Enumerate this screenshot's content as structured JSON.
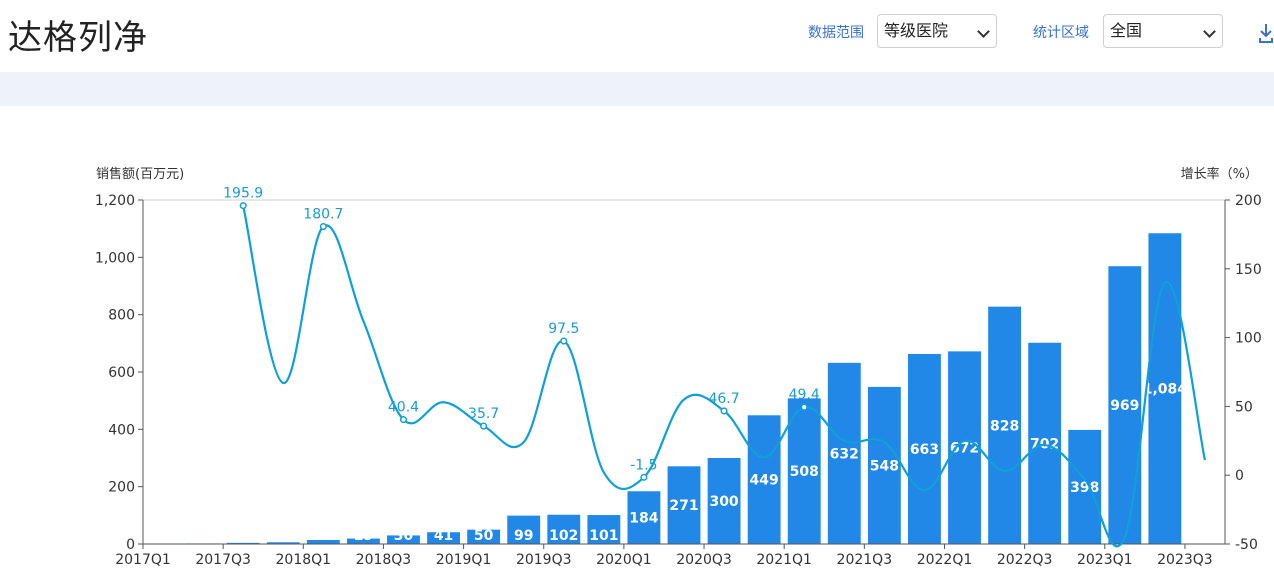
{
  "page": {
    "title": "达格列净",
    "filters": [
      {
        "label": "数据范围",
        "value": "等级医院"
      },
      {
        "label": "统计区域",
        "value": "全国"
      }
    ],
    "download_icon": "download-icon"
  },
  "colors": {
    "bar": "#2288e8",
    "line": "#0ea0d6",
    "label_line": "#1c9bd0",
    "accent": "#3a72c9"
  },
  "chart_data": {
    "type": "bar",
    "categories": [
      "2017Q1",
      "2017Q2",
      "2017Q3",
      "2017Q4",
      "2018Q1",
      "2018Q2",
      "2018Q3",
      "2018Q4",
      "2019Q1",
      "2019Q2",
      "2019Q3",
      "2019Q4",
      "2020Q1",
      "2020Q2",
      "2020Q3",
      "2020Q4",
      "2021Q1",
      "2021Q2",
      "2021Q3",
      "2021Q4",
      "2022Q1",
      "2022Q2",
      "2022Q3",
      "2022Q4",
      "2023Q1",
      "2023Q2",
      "2023Q3"
    ],
    "x_tick_labels": [
      "2017Q1",
      "2017Q3",
      "2018Q1",
      "2018Q3",
      "2019Q1",
      "2019Q3",
      "2020Q1",
      "2020Q3",
      "2021Q1",
      "2021Q3",
      "2022Q1",
      "2022Q3",
      "2023Q1",
      "2023Q3"
    ],
    "series": [
      {
        "name": "",
        "type": "bar",
        "axis": "left",
        "values": [
          1,
          2,
          4,
          6,
          14,
          19,
          30,
          41,
          50,
          99,
          102,
          101,
          184,
          271,
          300,
          449,
          508,
          632,
          548,
          663,
          672,
          828,
          702,
          398,
          969,
          1084,
          null
        ],
        "labels": [
          "",
          "",
          "",
          "",
          "14",
          "19",
          "30",
          "41",
          "50",
          "99",
          "102",
          "101",
          "184",
          "271",
          "300",
          "449",
          "508",
          "632",
          "548",
          "663",
          "672",
          "828",
          "702",
          "398",
          "969",
          "1,084",
          ""
        ]
      },
      {
        "name": "",
        "type": "line",
        "axis": "right",
        "values": [
          null,
          null,
          195.9,
          67,
          180.7,
          112,
          40.4,
          53,
          35.7,
          24,
          97.5,
          2,
          -1.5,
          55,
          46.7,
          13,
          49.4,
          25,
          24,
          -11,
          25,
          3,
          22,
          -3,
          -45,
          140,
          11
        ],
        "labels": [
          "",
          "",
          "195.9",
          "",
          "180.7",
          "",
          "40.4",
          "",
          "35.7",
          "",
          "97.5",
          "",
          "-1.5",
          "",
          "46.7",
          "",
          "49.4",
          "",
          "",
          "",
          "",
          "",
          "",
          "",
          "",
          "",
          ""
        ]
      }
    ],
    "y_left": {
      "label": "销售额(百万元)",
      "lim": [
        0,
        1200
      ],
      "ticks": [
        "0",
        "200",
        "400",
        "600",
        "800",
        "1,000",
        "1,200"
      ]
    },
    "y_right": {
      "label": "增长率（%）",
      "lim": [
        -50,
        200
      ],
      "ticks": [
        "-50",
        "0",
        "50",
        "100",
        "150",
        "200"
      ]
    },
    "grid": false,
    "legend": "none"
  }
}
